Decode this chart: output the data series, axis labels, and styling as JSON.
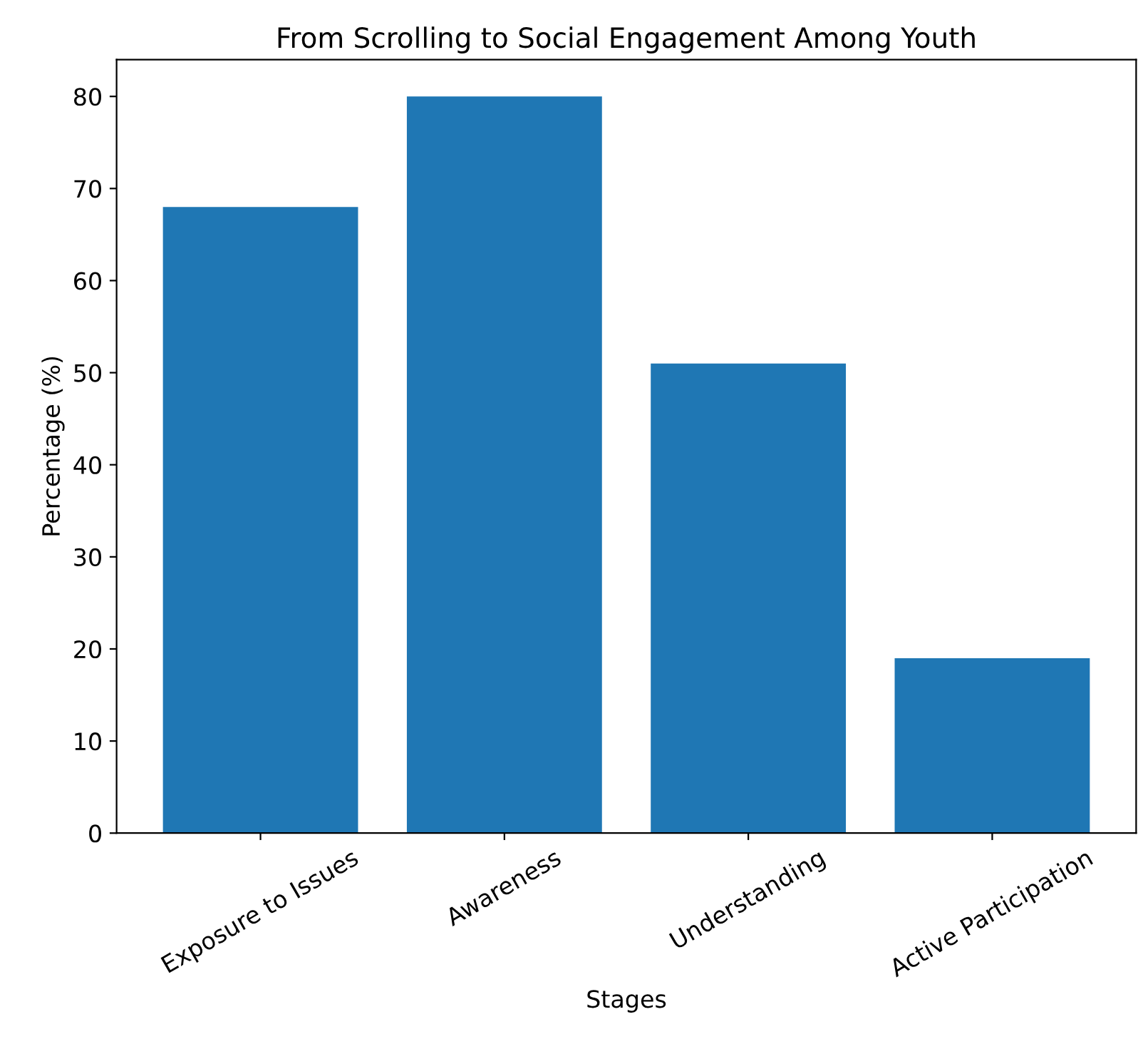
{
  "chart_data": {
    "type": "bar",
    "title": "From Scrolling to Social Engagement Among Youth",
    "xlabel": "Stages",
    "ylabel": "Percentage (%)",
    "categories": [
      "Exposure to Issues",
      "Awareness",
      "Understanding",
      "Active Participation"
    ],
    "values": [
      68,
      80,
      51,
      19
    ],
    "color": "#1f77b4",
    "ylim": [
      0,
      84
    ],
    "yticks": [
      0,
      10,
      20,
      30,
      40,
      50,
      60,
      70,
      80
    ],
    "grid": false
  }
}
